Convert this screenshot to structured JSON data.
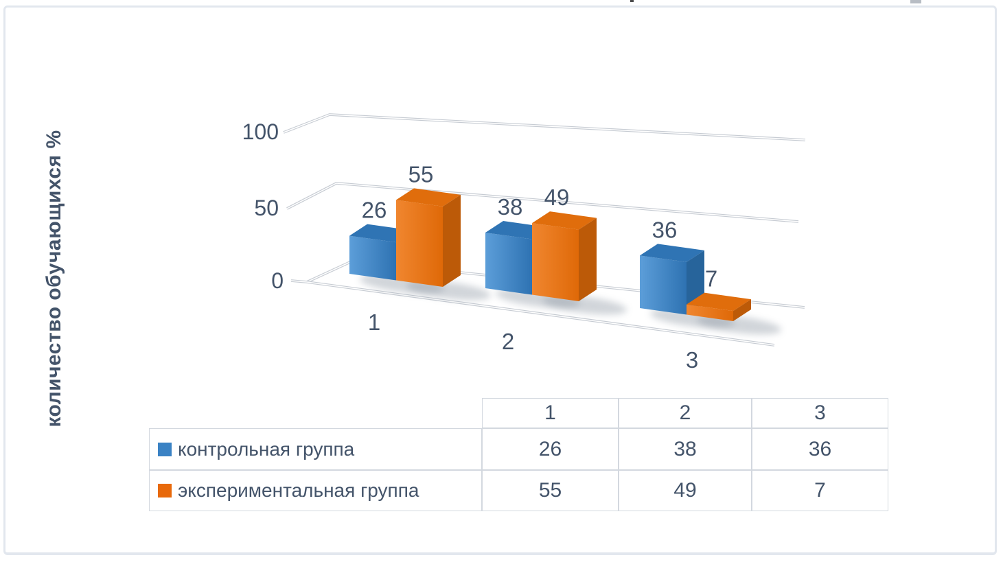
{
  "chart_data": {
    "type": "bar",
    "projection": "3d",
    "categories": [
      "1",
      "2",
      "3"
    ],
    "series": [
      {
        "name": "контрольная группа",
        "values": [
          26,
          38,
          36
        ],
        "color": "#3A82C4",
        "faces": {
          "top": "#2F74B4",
          "front_light": "#5C9ED9",
          "front_dark": "#2E72B2",
          "side": "#27649B"
        }
      },
      {
        "name": "экспериментальная группа",
        "values": [
          55,
          49,
          7
        ],
        "color": "#E8690B",
        "faces": {
          "top": "#E06D0C",
          "front_light": "#F0862F",
          "front_dark": "#DF6908",
          "side": "#BC5A08"
        }
      }
    ],
    "ylabel": "количество обучающихся %",
    "yticks": [
      "100",
      "50",
      "0"
    ],
    "ylim": [
      0,
      100
    ],
    "grid": true,
    "data_labels": true,
    "legend_position": "table-below"
  },
  "table": {
    "col_headers": [
      "1",
      "2",
      "3"
    ],
    "rows": [
      {
        "label": "контрольная группа",
        "swatch": "#3A82C4",
        "values": [
          "26",
          "38",
          "36"
        ]
      },
      {
        "label": "экспериментальная группа",
        "swatch": "#E8690B",
        "values": [
          "55",
          "49",
          "7"
        ]
      }
    ]
  },
  "colors": {
    "text": "#44546A",
    "gridline": "#C7CCD3",
    "frame_border": "#E2E7EE",
    "background": "#FFFFFF"
  }
}
